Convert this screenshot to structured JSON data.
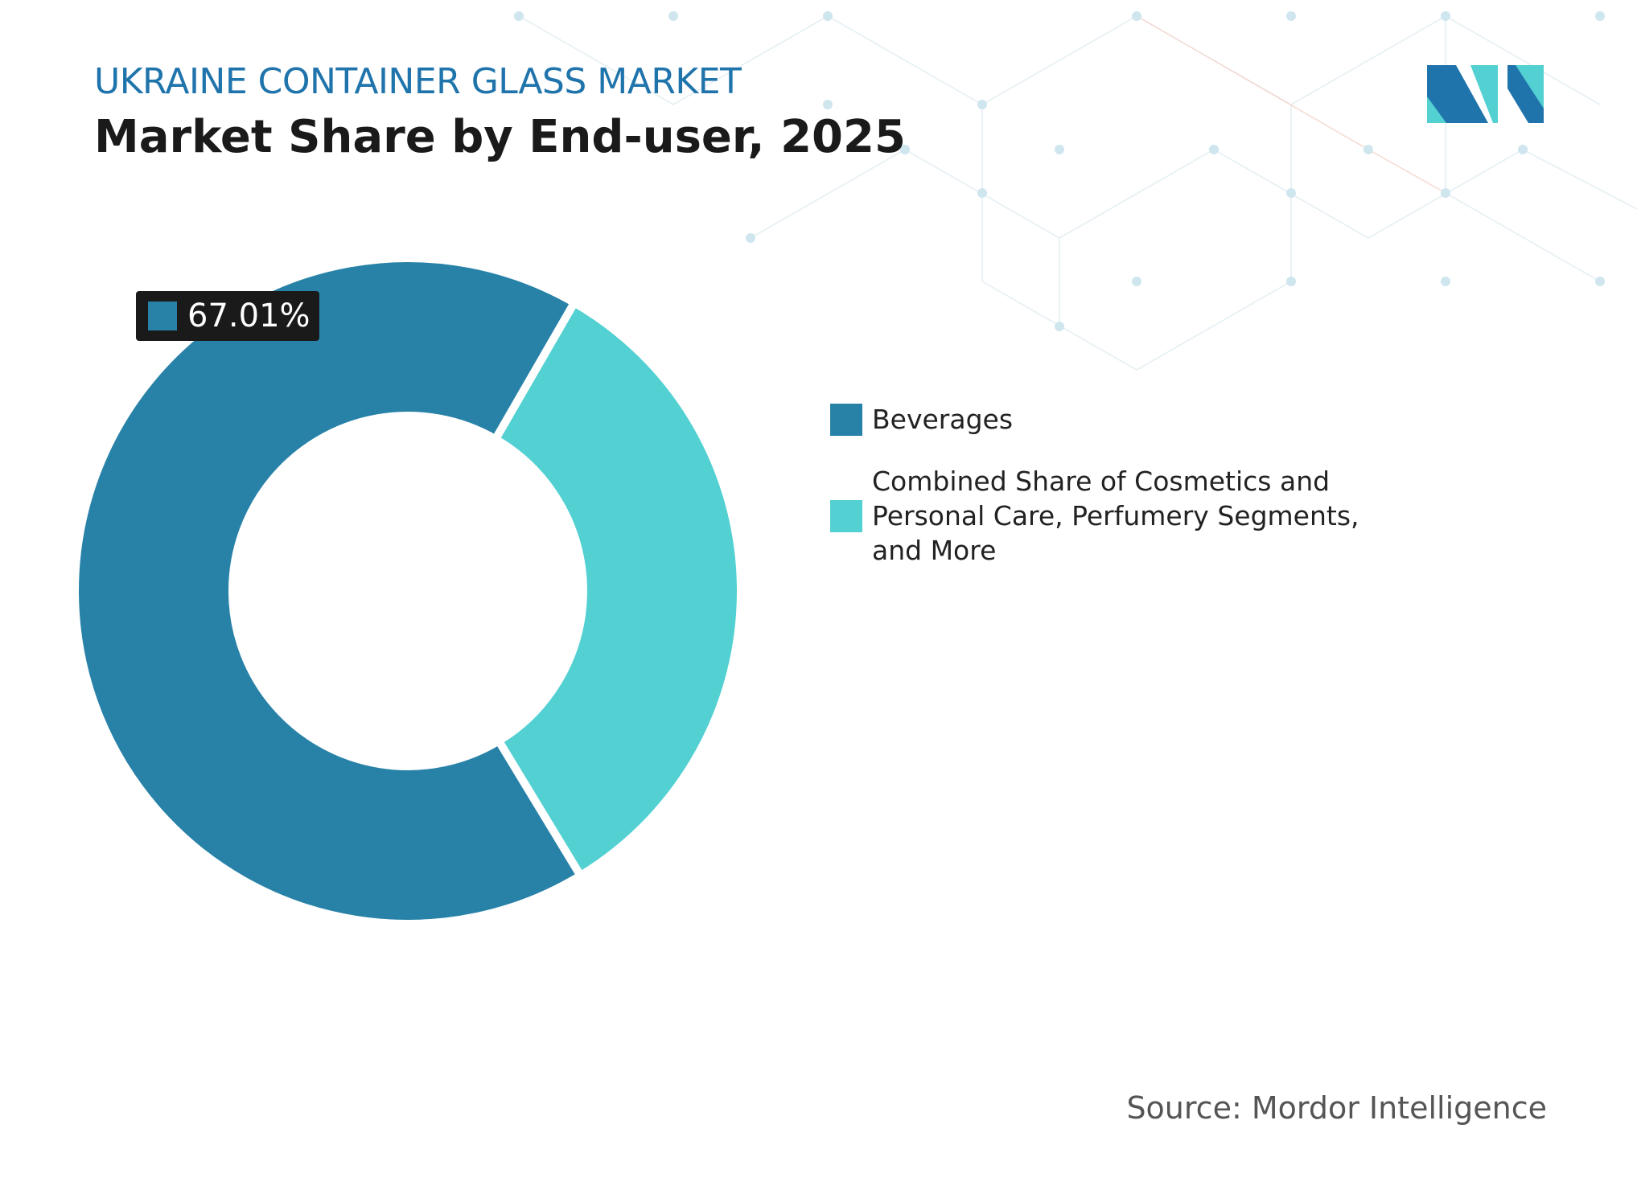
{
  "header": {
    "kicker": "UKRAINE CONTAINER GLASS MARKET",
    "source": "Source: Mordor Intelligence"
  },
  "chart_data": {
    "type": "donut",
    "title": "Market Share by End-user, 2025",
    "categories": [
      "Beverages",
      "Combined Share of Cosmetics and Personal Care, Perfumery Segments, and More"
    ],
    "values": [
      67.01,
      32.99
    ],
    "value_labels": [
      "67.01%",
      null
    ],
    "colors": [
      "#2882a8",
      "#52d0d2"
    ],
    "legend": "right"
  }
}
